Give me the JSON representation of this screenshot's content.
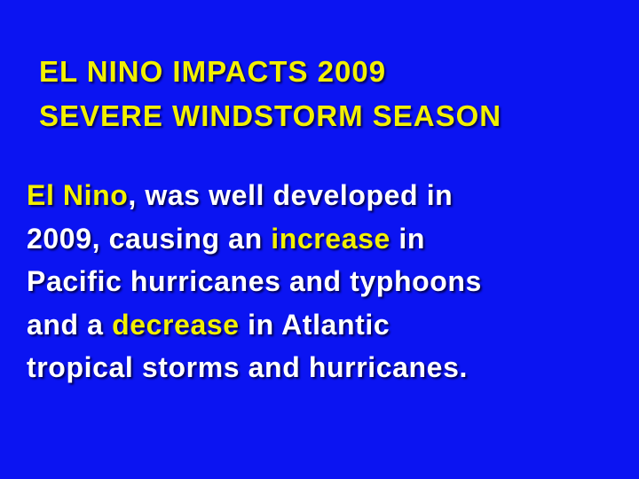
{
  "title": {
    "lines": [
      "EL NINO IMPACTS 2009",
      "SEVERE WINDSTORM SEASON"
    ]
  },
  "body": {
    "lines": [
      [
        {
          "text": "El Nino",
          "highlight": true
        },
        {
          "text": ", was well developed in",
          "highlight": false
        }
      ],
      [
        {
          "text": "2009, causing an ",
          "highlight": false
        },
        {
          "text": "increase",
          "highlight": true
        },
        {
          "text": " in",
          "highlight": false
        }
      ],
      [
        {
          "text": "Pacific hurricanes and typhoons",
          "highlight": false
        }
      ],
      [
        {
          "text": "and a ",
          "highlight": false
        },
        {
          "text": "decrease",
          "highlight": true
        },
        {
          "text": " in Atlantic",
          "highlight": false
        }
      ],
      [
        {
          "text": "tropical storms and hurricanes.",
          "highlight": false
        }
      ]
    ]
  }
}
